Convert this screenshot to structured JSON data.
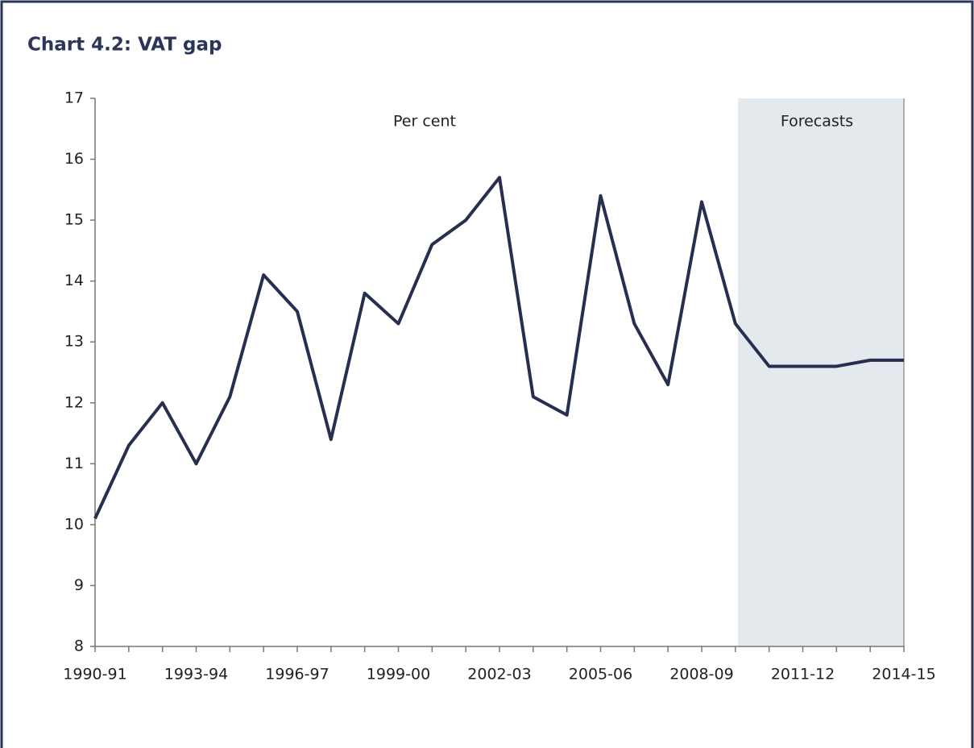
{
  "chart_data": {
    "type": "line",
    "title": "Chart 4.2: VAT gap",
    "annotations": [
      "Per cent",
      "Forecasts"
    ],
    "categories": [
      "1990-91",
      null,
      null,
      "1993-94",
      null,
      null,
      "1996-97",
      null,
      null,
      "1999-00",
      null,
      null,
      "2002-03",
      null,
      null,
      "2005-06",
      null,
      null,
      "2008-09",
      null,
      null,
      "2011-12",
      null,
      null,
      "2014-15"
    ],
    "series": [
      {
        "name": "VAT gap",
        "color": "#262f4f",
        "values": [
          10.1,
          11.3,
          12.0,
          11.0,
          12.1,
          14.1,
          13.5,
          11.4,
          13.8,
          13.3,
          14.6,
          15.0,
          15.7,
          12.1,
          11.8,
          15.4,
          13.3,
          12.3,
          15.3,
          13.3,
          12.6,
          12.6,
          12.6,
          12.7,
          12.7
        ]
      }
    ],
    "ylim": [
      8,
      17
    ],
    "yticks": [
      8,
      9,
      10,
      11,
      12,
      13,
      14,
      15,
      16,
      17
    ],
    "grid": false
  }
}
